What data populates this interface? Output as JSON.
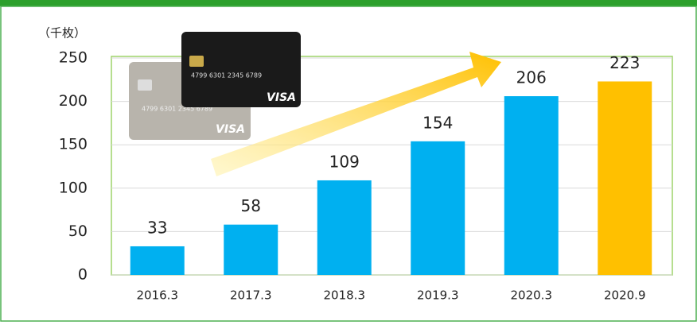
{
  "chart_data": {
    "type": "bar",
    "unit": "（千枚）",
    "categories": [
      "2016.3",
      "2017.3",
      "2018.3",
      "2019.3",
      "2020.3",
      "2020.9"
    ],
    "values": [
      33,
      58,
      109,
      154,
      206,
      223
    ],
    "colors": [
      "#00b0f0",
      "#00b0f0",
      "#00b0f0",
      "#00b0f0",
      "#00b0f0",
      "#ffc000"
    ],
    "ylim": [
      0,
      250
    ],
    "yticks": [
      0,
      50,
      100,
      150,
      200,
      250
    ],
    "grid": true
  },
  "cards": [
    {
      "number": "4799 6301 2345 6789",
      "brand": "VISA"
    },
    {
      "number": "4799 6301 2345 6789",
      "brand": "VISA"
    }
  ]
}
